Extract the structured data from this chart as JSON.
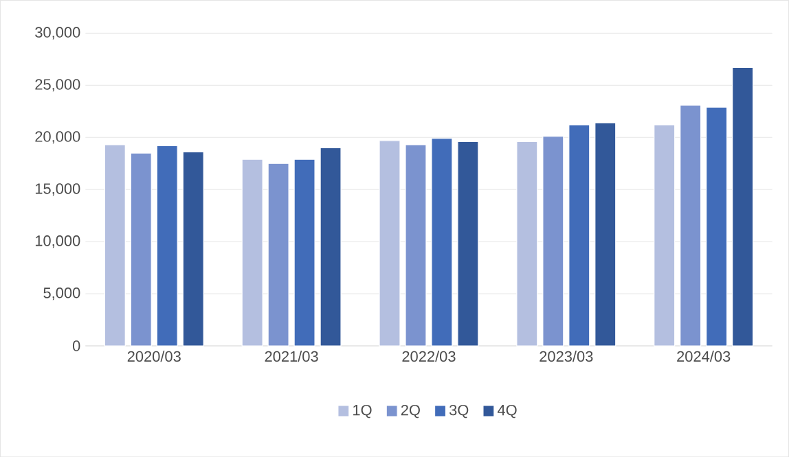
{
  "chart_data": {
    "type": "bar",
    "categories": [
      "2020/03",
      "2021/03",
      "2022/03",
      "2023/03",
      "2024/03"
    ],
    "series": [
      {
        "name": "1Q",
        "color": "#b4bfe0",
        "values": [
          19300,
          17900,
          19700,
          19600,
          21200
        ]
      },
      {
        "name": "2Q",
        "color": "#7b93cf",
        "values": [
          18500,
          17500,
          19300,
          20100,
          23100
        ]
      },
      {
        "name": "3Q",
        "color": "#416cb9",
        "values": [
          19200,
          17900,
          19900,
          21200,
          22900
        ]
      },
      {
        "name": "4Q",
        "color": "#325899",
        "values": [
          18600,
          19000,
          19600,
          21400,
          26700
        ]
      }
    ],
    "ylim": [
      0,
      30000
    ],
    "yticks": [
      {
        "value": 0,
        "label": "0"
      },
      {
        "value": 5000,
        "label": "5,000"
      },
      {
        "value": 10000,
        "label": "10,000"
      },
      {
        "value": 15000,
        "label": "15,000"
      },
      {
        "value": 20000,
        "label": "20,000"
      },
      {
        "value": 25000,
        "label": "25,000"
      },
      {
        "value": 30000,
        "label": "30,000"
      }
    ],
    "grid": "y",
    "legend": "bottom"
  }
}
